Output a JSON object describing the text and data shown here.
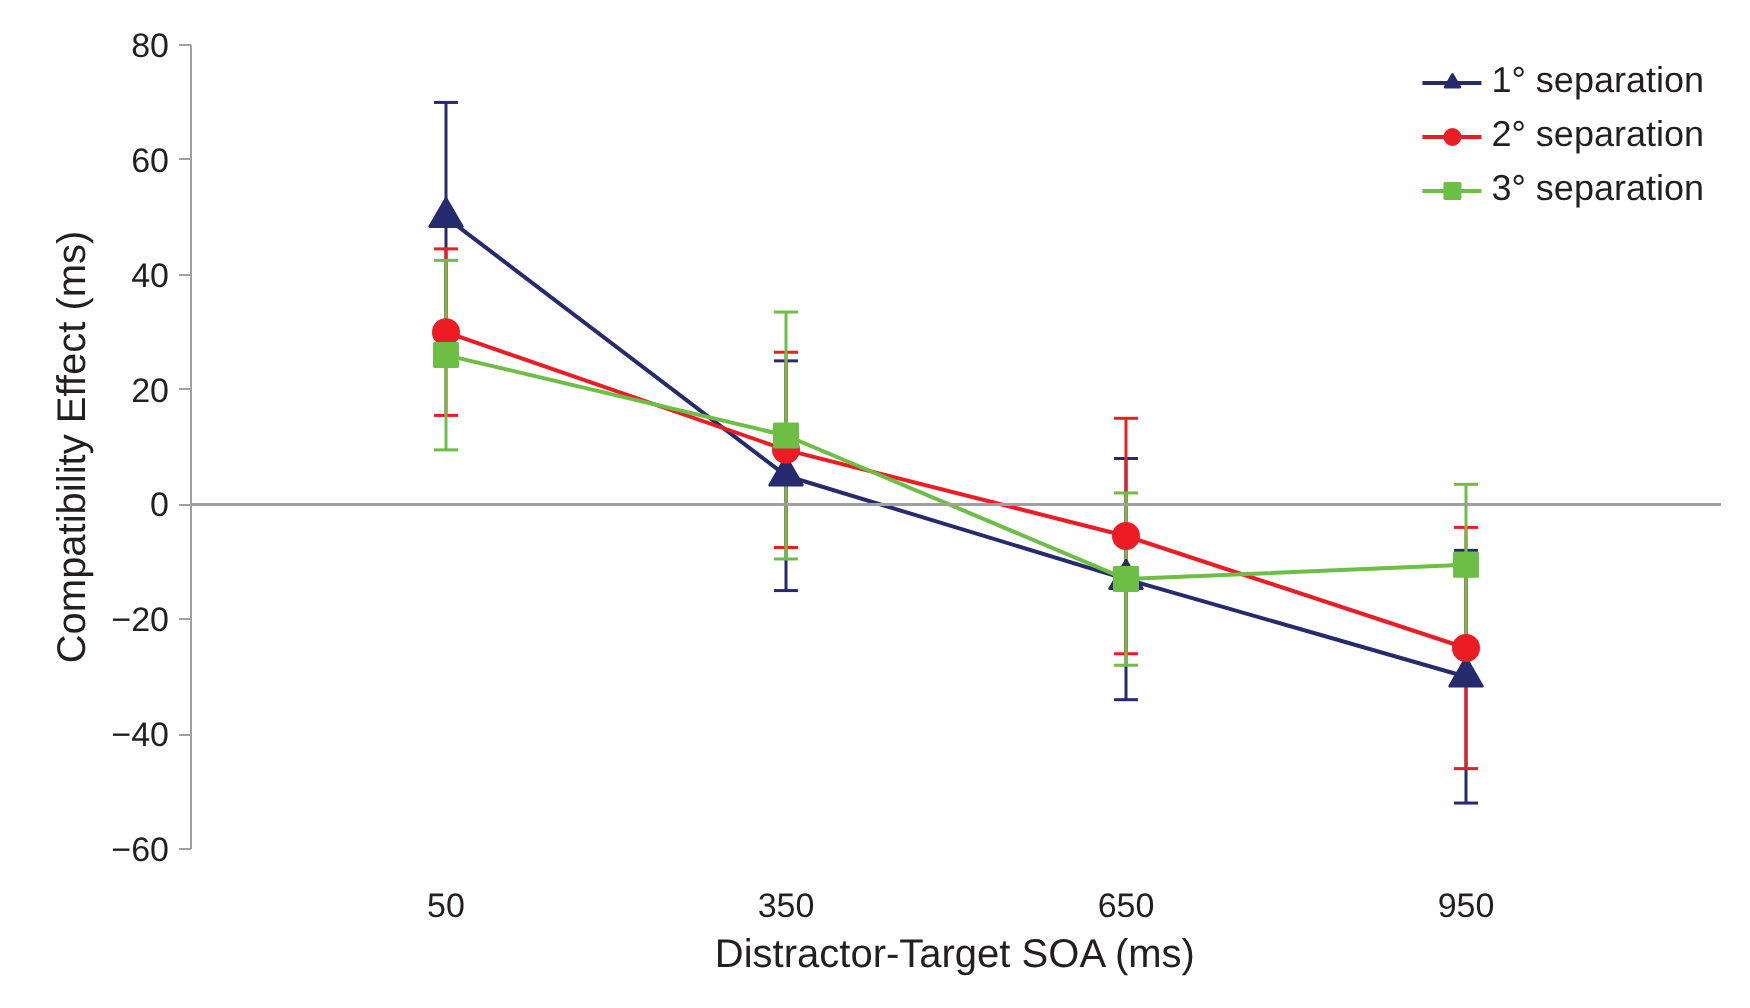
{
  "chart_data": {
    "type": "line",
    "xlabel": "Distractor-Target SOA (ms)",
    "ylabel": "Compatibility Effect (ms)",
    "categories": [
      "50",
      "350",
      "650",
      "950"
    ],
    "series": [
      {
        "name": "1° separation",
        "color": "#262a6e",
        "marker": "triangle",
        "values": [
          50,
          5,
          -13,
          -30
        ],
        "errors": [
          20,
          20,
          21,
          22
        ]
      },
      {
        "name": "2° separation",
        "color": "#ed1c24",
        "marker": "circle",
        "values": [
          30,
          9.5,
          -5.5,
          -25
        ],
        "errors": [
          14.5,
          17,
          20.5,
          21
        ]
      },
      {
        "name": "3° separation",
        "color": "#6cbe45",
        "marker": "square",
        "values": [
          26,
          12,
          -13,
          -10.5
        ],
        "errors": [
          16.5,
          21.5,
          15,
          14
        ]
      }
    ],
    "ylim": [
      -60,
      80
    ],
    "yticks": [
      -60,
      -40,
      -20,
      0,
      20,
      40,
      60,
      80
    ],
    "ref_lines": [
      {
        "axis": "y",
        "value": 0,
        "color": "#a0a0a0"
      }
    ],
    "grid": false,
    "legend": "top right",
    "line_style": "solid"
  }
}
